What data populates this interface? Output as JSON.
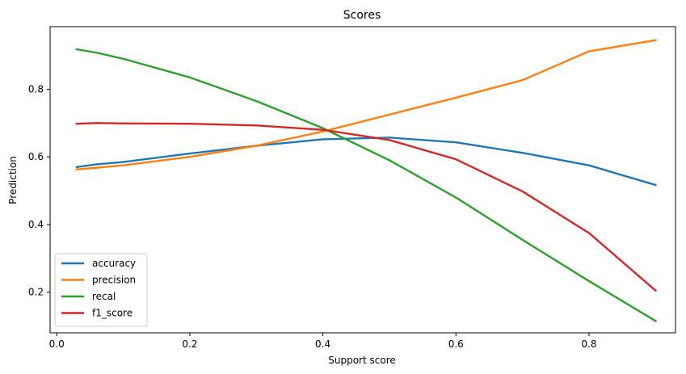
{
  "chart_data": {
    "type": "line",
    "title": "Scores",
    "xlabel": "Support score",
    "ylabel": "Prediction",
    "xlim": [
      -0.01,
      0.93
    ],
    "ylim": [
      0.08,
      0.985
    ],
    "xticks": [
      0.0,
      0.2,
      0.4,
      0.6,
      0.8
    ],
    "xtick_labels": [
      "0.0",
      "0.2",
      "0.4",
      "0.6",
      "0.8"
    ],
    "yticks": [
      0.2,
      0.4,
      0.6,
      0.8
    ],
    "ytick_labels": [
      "0.2",
      "0.4",
      "0.6",
      "0.8"
    ],
    "grid": false,
    "legend_position": "lower-left",
    "x": [
      0.03,
      0.06,
      0.1,
      0.2,
      0.3,
      0.4,
      0.5,
      0.6,
      0.7,
      0.8,
      0.9
    ],
    "series": [
      {
        "name": "accuracy",
        "color": "#1f77b4",
        "values": [
          0.57,
          0.578,
          0.585,
          0.61,
          0.633,
          0.652,
          0.657,
          0.643,
          0.612,
          0.575,
          0.517
        ]
      },
      {
        "name": "precision",
        "color": "#ff7f0e",
        "values": [
          0.563,
          0.568,
          0.575,
          0.6,
          0.633,
          0.675,
          0.725,
          0.775,
          0.827,
          0.912,
          0.945
        ]
      },
      {
        "name": "recal",
        "color": "#2ca02c",
        "values": [
          0.918,
          0.908,
          0.89,
          0.835,
          0.765,
          0.685,
          0.59,
          0.48,
          0.355,
          0.233,
          0.115
        ]
      },
      {
        "name": "f1_score",
        "color": "#d62728",
        "values": [
          0.698,
          0.7,
          0.699,
          0.698,
          0.693,
          0.68,
          0.65,
          0.593,
          0.498,
          0.375,
          0.205
        ]
      }
    ]
  }
}
